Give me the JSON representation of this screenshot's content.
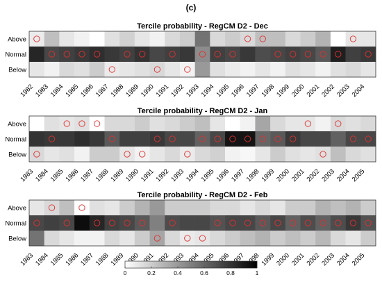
{
  "figure": {
    "panel_label": "(c)"
  },
  "chart_data": [
    {
      "type": "heatmap",
      "title": "Tercile probability - RegCM D2 - Dec",
      "rows": [
        "Above",
        "Normal",
        "Below"
      ],
      "x": [
        "1982",
        "1983",
        "1984",
        "1985",
        "1986",
        "1987",
        "1988",
        "1989",
        "1990",
        "1991",
        "1992",
        "1993",
        "1994",
        "1995",
        "1996",
        "1997",
        "1998",
        "1999",
        "2000",
        "2001",
        "2002",
        "2003",
        "2004"
      ],
      "values": [
        [
          0.08,
          0.25,
          0.1,
          0.05,
          0.0,
          0.12,
          0.18,
          0.1,
          0.05,
          0.15,
          0.2,
          0.55,
          0.15,
          0.2,
          0.15,
          0.25,
          0.25,
          0.15,
          0.2,
          0.3,
          0.0,
          0.1,
          0.1
        ],
        [
          0.85,
          0.72,
          0.75,
          0.78,
          0.82,
          0.78,
          0.75,
          0.8,
          0.72,
          0.75,
          0.78,
          0.45,
          0.75,
          0.72,
          0.78,
          0.7,
          0.72,
          0.75,
          0.72,
          0.65,
          0.88,
          0.75,
          0.78
        ],
        [
          0.1,
          0.05,
          0.15,
          0.12,
          0.2,
          0.08,
          0.1,
          0.12,
          0.15,
          0.1,
          0.05,
          0.4,
          0.12,
          0.08,
          0.05,
          0.1,
          0.05,
          0.12,
          0.1,
          0.05,
          0.12,
          0.15,
          0.1
        ]
      ],
      "observed": [
        "Above",
        "Normal",
        "Normal",
        "Normal",
        "Normal",
        "Below",
        "Normal",
        "Normal",
        "Below",
        "Normal",
        "Below",
        "Normal",
        "Normal",
        "Normal",
        "Above",
        "Above",
        "Normal",
        "Normal",
        "Normal",
        "Normal",
        "Normal",
        "Above",
        "Normal"
      ]
    },
    {
      "type": "heatmap",
      "title": "Tercile probability - RegCM D2 - Jan",
      "rows": [
        "Above",
        "Normal",
        "Below"
      ],
      "x": [
        "1983",
        "1984",
        "1985",
        "1986",
        "1987",
        "1988",
        "1989",
        "1990",
        "1991",
        "1992",
        "1993",
        "1994",
        "1995",
        "1996",
        "1997",
        "1998",
        "1999",
        "2000",
        "2001",
        "2002",
        "2003",
        "2004",
        "2005"
      ],
      "values": [
        [
          0.0,
          0.12,
          0.1,
          0.12,
          0.0,
          0.15,
          0.15,
          0.2,
          0.12,
          0.15,
          0.2,
          0.25,
          0.1,
          0.0,
          0.05,
          0.35,
          0.15,
          0.1,
          0.1,
          0.05,
          0.15,
          0.12,
          0.15
        ],
        [
          0.8,
          0.78,
          0.78,
          0.82,
          0.78,
          0.65,
          0.75,
          0.75,
          0.78,
          0.72,
          0.72,
          0.62,
          0.72,
          0.92,
          0.92,
          0.6,
          0.65,
          0.78,
          0.72,
          0.72,
          0.62,
          0.72,
          0.72
        ],
        [
          0.15,
          0.1,
          0.12,
          0.05,
          0.2,
          0.2,
          0.1,
          0.05,
          0.1,
          0.15,
          0.08,
          0.15,
          0.18,
          0.05,
          0.03,
          0.1,
          0.2,
          0.12,
          0.1,
          0.12,
          0.25,
          0.15,
          0.12
        ]
      ],
      "observed": [
        "Below",
        "Normal",
        "Above",
        "Above",
        "Above",
        "Normal",
        "Below",
        "Below",
        "Normal",
        "Normal",
        "Below",
        "Normal",
        "Normal",
        "Normal",
        "Normal",
        "Normal",
        "Normal",
        "Normal",
        "Above",
        "Below",
        "Above",
        "Normal",
        "Normal"
      ]
    },
    {
      "type": "heatmap",
      "title": "Tercile probability - RegCM D2 - Feb",
      "rows": [
        "Above",
        "Normal",
        "Below"
      ],
      "x": [
        "1983",
        "1984",
        "1985",
        "1986",
        "1987",
        "1988",
        "1989",
        "1990",
        "1991",
        "1992",
        "1993",
        "1994",
        "1995",
        "1996",
        "1997",
        "1998",
        "1999",
        "2000",
        "2001",
        "2002",
        "2003",
        "2004",
        "2005"
      ],
      "values": [
        [
          0.1,
          0.15,
          0.25,
          0.0,
          0.12,
          0.1,
          0.2,
          0.3,
          0.4,
          0.2,
          0.2,
          0.2,
          0.15,
          0.15,
          0.1,
          0.15,
          0.1,
          0.2,
          0.2,
          0.3,
          0.25,
          0.3,
          0.2
        ],
        [
          0.72,
          0.75,
          0.72,
          0.95,
          0.85,
          0.75,
          0.72,
          0.65,
          0.5,
          0.7,
          0.72,
          0.72,
          0.68,
          0.72,
          0.72,
          0.65,
          0.72,
          0.62,
          0.7,
          0.62,
          0.7,
          0.78,
          0.68
        ],
        [
          0.55,
          0.15,
          0.1,
          0.05,
          0.05,
          0.15,
          0.1,
          0.2,
          0.35,
          0.15,
          0.08,
          0.1,
          0.15,
          0.2,
          0.25,
          0.3,
          0.2,
          0.25,
          0.2,
          0.28,
          0.15,
          0.1,
          0.2
        ]
      ],
      "observed": [
        "Normal",
        "Above",
        "Normal",
        "Above",
        "Normal",
        "Normal",
        "Normal",
        "Normal",
        "Below",
        "Normal",
        "Below",
        "Below",
        "Normal",
        "Normal",
        "Normal",
        "Normal",
        "Normal",
        "Normal",
        "Normal",
        "Normal",
        "Normal",
        "Normal",
        "Normal"
      ]
    }
  ],
  "colorbar": {
    "min": 0,
    "max": 1,
    "ticks": [
      "0",
      "0.2",
      "0.4",
      "0.6",
      "0.8",
      "1"
    ],
    "colormap": "white-to-black"
  },
  "colors": {
    "marker": "#e03030",
    "border": "#333333"
  }
}
